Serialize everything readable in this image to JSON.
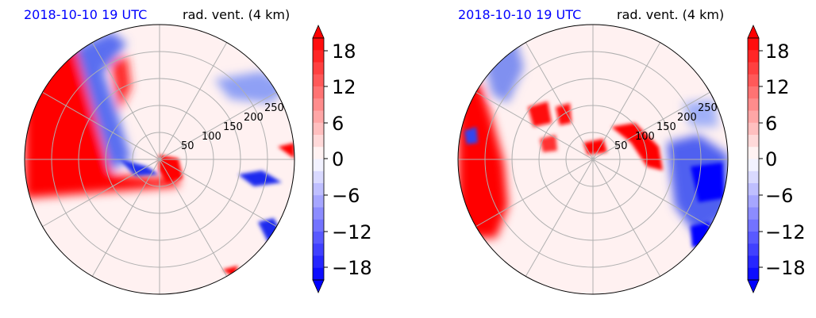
{
  "chart_data": [
    {
      "type": "heatmap",
      "projection": "polar",
      "title_left": "2018-10-10 19 UTC",
      "title_right": "rad. vent. (4 km)",
      "radial_ticks": [
        50,
        100,
        150,
        200,
        250
      ],
      "grid": true,
      "colorbar": {
        "ticks": [
          18,
          12,
          6,
          0,
          -6,
          -12,
          -18
        ],
        "tick_labels": [
          "18",
          "12",
          "6",
          "0",
          "−6",
          "−12",
          "−18"
        ],
        "range": [
          -20,
          20
        ],
        "extend": "both",
        "cmap": "bwr",
        "colors": {
          "positive": "#ff0000",
          "zero": "#ffffff",
          "negative": "#0000ff"
        }
      }
    },
    {
      "type": "heatmap",
      "projection": "polar",
      "title_left": "2018-10-10 19 UTC",
      "title_right": "rad. vent. (4 km)",
      "radial_ticks": [
        50,
        100,
        150,
        200,
        250
      ],
      "grid": true,
      "colorbar": {
        "ticks": [
          18,
          12,
          6,
          0,
          -6,
          -12,
          -18
        ],
        "tick_labels": [
          "18",
          "12",
          "6",
          "0",
          "−6",
          "−12",
          "−18"
        ],
        "range": [
          -20,
          20
        ],
        "extend": "both",
        "cmap": "bwr",
        "colors": {
          "positive": "#ff0000",
          "zero": "#ffffff",
          "negative": "#0000ff"
        }
      }
    }
  ]
}
